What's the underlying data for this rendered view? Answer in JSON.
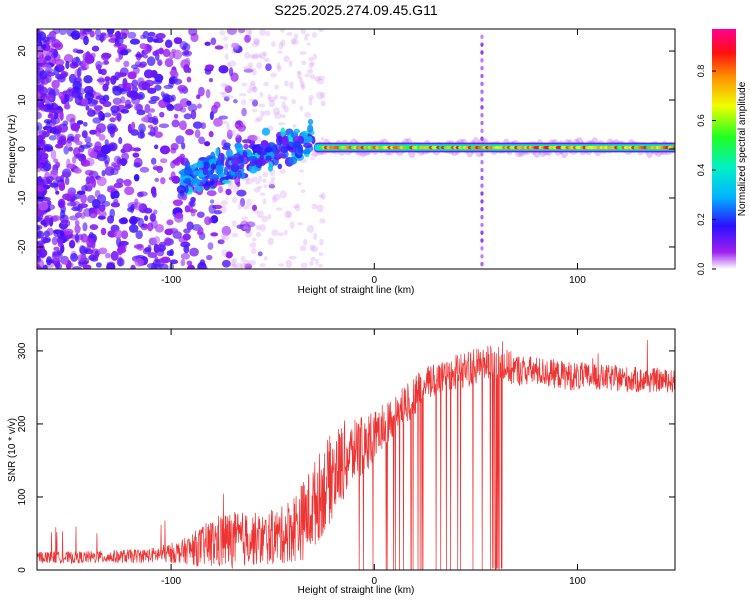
{
  "figure_title": "S225.2025.274.09.45.G11",
  "chart_data": [
    {
      "type": "heatmap",
      "title": "",
      "xlabel": "Height of straight line (km)",
      "ylabel": "Frequency (Hz)",
      "xlim": [
        -166,
        148
      ],
      "ylim": [
        -24.5,
        24.5
      ],
      "x_ticks": [
        -100,
        0,
        100
      ],
      "y_ticks": [
        -20,
        -10,
        0,
        10,
        20
      ],
      "colorbar": {
        "label": "Normalized spectral amplitude",
        "range": [
          0,
          0.97
        ],
        "ticks": [
          0.0,
          0.2,
          0.4,
          0.6,
          0.8
        ],
        "colormap": "rainbow (violet-blue-cyan-green-yellow-orange-red-magenta)"
      },
      "features": [
        {
          "name": "diffuse noise field",
          "x_range": [
            -166,
            -80
          ],
          "freq_range": [
            -24.5,
            24.5
          ],
          "amplitude": 0.05
        },
        {
          "name": "emerging signal",
          "x_range": [
            -95,
            -30
          ],
          "freq_center": -3,
          "amplitude": 0.25
        },
        {
          "name": "carrier line",
          "x_range": [
            -28,
            148
          ],
          "freq_center": 0.3,
          "amplitude": 0.9
        },
        {
          "name": "vertical artifact",
          "x": 53,
          "freq_range": [
            -24.5,
            24.5
          ],
          "amplitude": 0.05
        }
      ]
    },
    {
      "type": "line",
      "title": "",
      "xlabel": "Height of straight line (km)",
      "ylabel": "SNR (10 * v/v)",
      "xlim": [
        -166,
        148
      ],
      "ylim": [
        0,
        330
      ],
      "x_ticks": [
        -100,
        0,
        100
      ],
      "y_ticks": [
        0,
        100,
        200,
        300
      ],
      "series": [
        {
          "name": "SNR",
          "color": "#ee3333",
          "x": [
            -166,
            -150,
            -130,
            -110,
            -95,
            -85,
            -75,
            -65,
            -55,
            -45,
            -40,
            -35,
            -30,
            -25,
            -20,
            -15,
            -10,
            -5,
            0,
            5,
            10,
            15,
            20,
            25,
            30,
            35,
            40,
            45,
            50,
            55,
            60,
            65,
            70,
            80,
            90,
            100,
            110,
            120,
            130,
            140,
            148
          ],
          "values": [
            18,
            17,
            18,
            20,
            25,
            32,
            40,
            42,
            42,
            48,
            58,
            68,
            88,
            110,
            132,
            150,
            160,
            172,
            182,
            200,
            212,
            225,
            240,
            252,
            262,
            268,
            272,
            275,
            278,
            282,
            283,
            278,
            274,
            272,
            268,
            265,
            264,
            262,
            260,
            260,
            258
          ],
          "noise_amplitude": [
            8,
            8,
            9,
            10,
            16,
            28,
            40,
            38,
            36,
            40,
            48,
            55,
            60,
            62,
            60,
            55,
            45,
            40,
            35,
            30,
            28,
            28,
            27,
            26,
            25,
            25,
            25,
            25,
            25,
            25,
            25,
            25,
            22,
            20,
            20,
            20,
            18,
            18,
            18,
            16,
            16
          ]
        }
      ]
    }
  ]
}
